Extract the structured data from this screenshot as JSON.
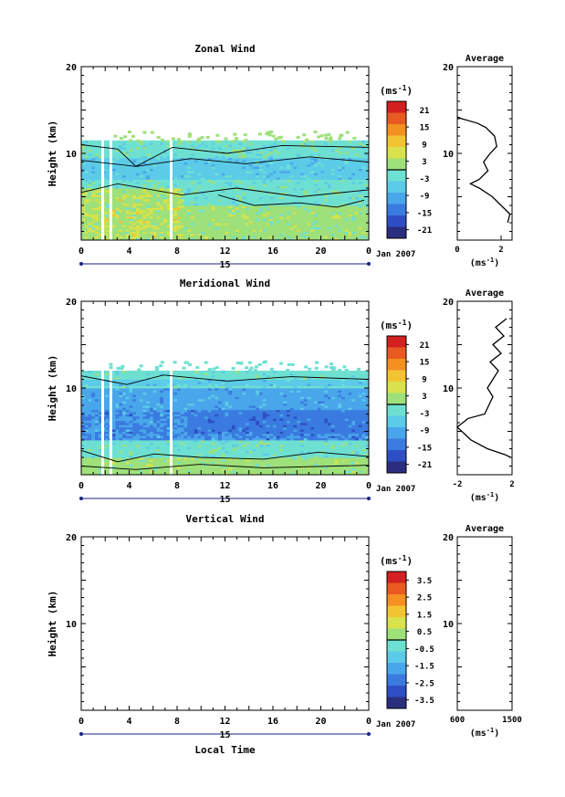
{
  "colors": {
    "palette": [
      "#2b2d7e",
      "#2e4fc4",
      "#3a7be0",
      "#4aa6ea",
      "#5ccbe8",
      "#6ee0d2",
      "#9ee07a",
      "#d8e24a",
      "#f2c432",
      "#f39020",
      "#e85a22",
      "#d42020"
    ],
    "contour": "#000000"
  },
  "chart_data": [
    {
      "type": "heatmap",
      "title": "Zonal Wind",
      "ylabel": "Height (km)",
      "ylim": [
        0,
        20
      ],
      "yticks": [
        "10",
        "20"
      ],
      "xticks": [
        "0",
        "4",
        "8",
        "12",
        "16",
        "20",
        "0"
      ],
      "day_label": "15",
      "date_label": "Jan 2007",
      "colorbar": {
        "unit": "(ms",
        "unit_sup": "-1",
        "unit_close": ")",
        "ticks": [
          "21",
          "15",
          "9",
          "3",
          "-3",
          "-9",
          "-15",
          "-21"
        ]
      },
      "average": {
        "title": "Average",
        "xticks": [
          "0",
          "2"
        ],
        "xlabel": "(ms",
        "xlabel_sup": "-1",
        "xlabel_close": ")",
        "yticks": [
          "10",
          "20"
        ],
        "profile": [
          [
            2.3,
            2
          ],
          [
            2.4,
            3
          ],
          [
            2.0,
            4
          ],
          [
            1.6,
            5
          ],
          [
            1.0,
            6
          ],
          [
            0.6,
            6.5
          ],
          [
            1.0,
            7
          ],
          [
            1.4,
            8
          ],
          [
            1.2,
            9
          ],
          [
            1.5,
            10
          ],
          [
            1.8,
            10.8
          ],
          [
            1.7,
            12
          ],
          [
            1.3,
            13
          ],
          [
            0.9,
            13.5
          ],
          [
            0.2,
            14
          ],
          [
            0.0,
            14.2
          ]
        ]
      }
    },
    {
      "type": "heatmap",
      "title": "Meridional Wind",
      "ylabel": "Height (km)",
      "ylim": [
        0,
        20
      ],
      "yticks": [
        "10",
        "20"
      ],
      "xticks": [
        "0",
        "4",
        "8",
        "12",
        "16",
        "20",
        "0"
      ],
      "day_label": "15",
      "date_label": "Jan 2007",
      "colorbar": {
        "unit": "(ms",
        "unit_sup": "-1",
        "unit_close": ")",
        "ticks": [
          "21",
          "15",
          "9",
          "3",
          "-3",
          "-9",
          "-15",
          "-21"
        ]
      },
      "average": {
        "title": "Average",
        "xticks": [
          "-2",
          "2"
        ],
        "xlabel": "(ms",
        "xlabel_sup": "-1",
        "xlabel_close": ")",
        "yticks": [
          "10",
          "20"
        ],
        "profile": [
          [
            1.9,
            2
          ],
          [
            1.5,
            2.3
          ],
          [
            0.2,
            3
          ],
          [
            -1.0,
            4
          ],
          [
            -2.0,
            5.5
          ],
          [
            -1.2,
            6.5
          ],
          [
            0.0,
            7
          ],
          [
            0.3,
            8
          ],
          [
            0.6,
            9
          ],
          [
            0.2,
            10
          ],
          [
            0.6,
            11
          ],
          [
            1.0,
            12
          ],
          [
            0.4,
            13
          ],
          [
            1.2,
            14
          ],
          [
            0.6,
            15
          ],
          [
            1.4,
            16
          ],
          [
            0.8,
            17
          ],
          [
            1.6,
            18
          ]
        ]
      }
    },
    {
      "type": "heatmap",
      "title": "Vertical Wind",
      "ylabel": "Height (km)",
      "ylim": [
        0,
        20
      ],
      "yticks": [
        "10",
        "20"
      ],
      "xticks": [
        "0",
        "4",
        "8",
        "12",
        "16",
        "20",
        "0"
      ],
      "day_label": "15",
      "date_label": "Jan 2007",
      "xlabel": "Local Time",
      "colorbar": {
        "unit": "(ms",
        "unit_sup": "-1",
        "unit_close": ")",
        "ticks": [
          "3.5",
          "2.5",
          "1.5",
          "0.5",
          "-0.5",
          "-1.5",
          "-2.5",
          "-3.5"
        ]
      },
      "average": {
        "title": "Average",
        "xticks": [
          "600",
          "1500"
        ],
        "xlabel": "(ms",
        "xlabel_sup": "-1",
        "xlabel_close": ")",
        "yticks": [
          "10",
          "20"
        ],
        "profile": []
      }
    }
  ]
}
